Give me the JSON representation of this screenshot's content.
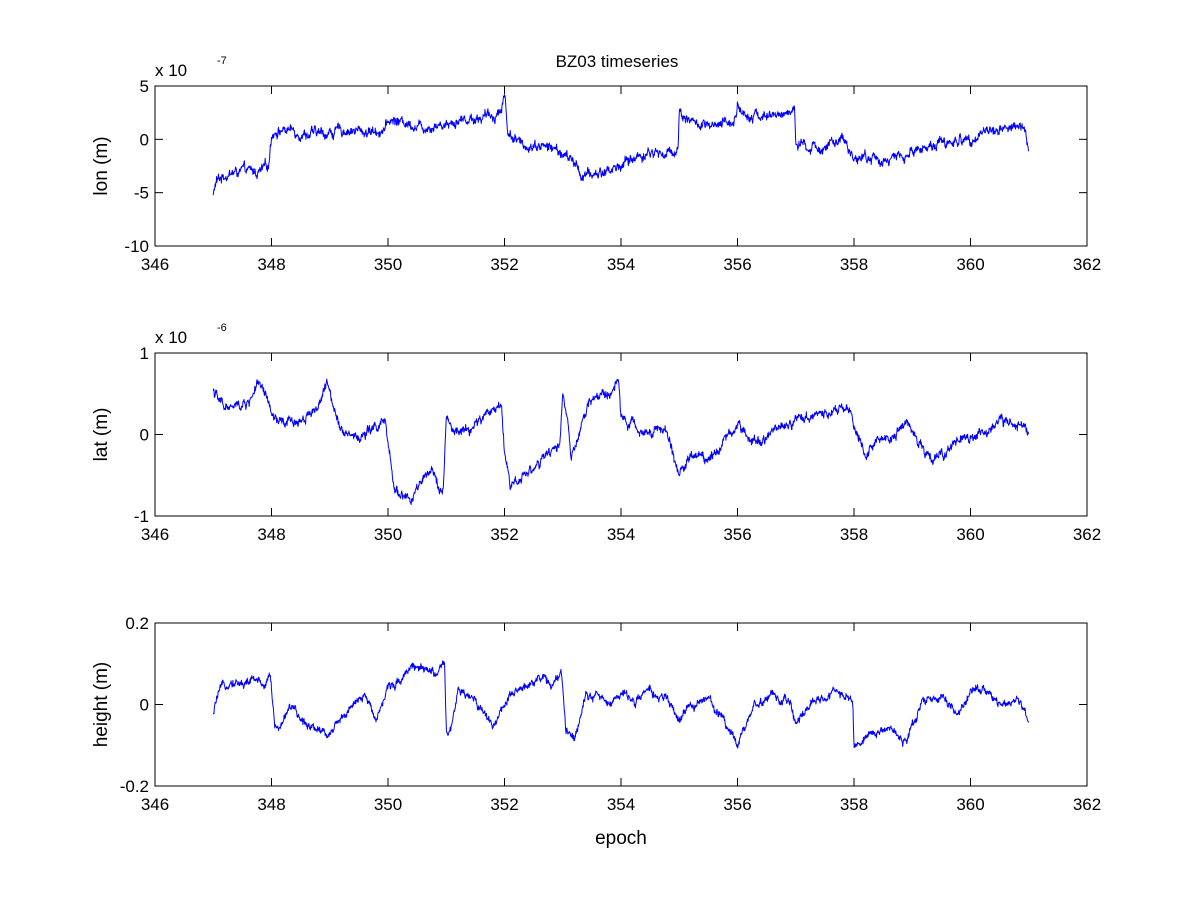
{
  "figure": {
    "title": "BZ03 timeseries",
    "line_color": "#0000ff",
    "background": "#ffffff"
  },
  "chart_data": [
    {
      "type": "line",
      "title": "BZ03 timeseries",
      "xlabel": "",
      "ylabel": "lon (m)",
      "exponent": {
        "base": "x 10",
        "power": "-7"
      },
      "xlim": [
        346,
        362
      ],
      "ylim": [
        -10,
        5
      ],
      "xticks": [
        "346",
        "348",
        "350",
        "352",
        "354",
        "356",
        "358",
        "360",
        "362"
      ],
      "yticks": [
        "-10",
        "-5",
        "0",
        "5"
      ],
      "xtick_values": [
        346,
        348,
        350,
        352,
        354,
        356,
        358,
        360,
        362
      ],
      "ytick_values": [
        -10,
        -5,
        0,
        5
      ],
      "grid": false,
      "noise": 0.55,
      "series": [
        {
          "color": "#0000ff",
          "x": [
            347.0,
            347.05,
            347.2,
            347.5,
            347.8,
            347.95,
            348.0,
            348.05,
            348.3,
            348.6,
            349.0,
            349.3,
            349.6,
            349.8,
            349.95,
            350.0,
            350.05,
            350.3,
            350.6,
            350.9,
            351.2,
            351.5,
            351.8,
            351.95,
            352.0,
            352.05,
            352.3,
            352.6,
            352.9,
            353.2,
            353.35,
            353.6,
            353.9,
            354.2,
            354.5,
            354.8,
            354.98,
            355.0,
            355.05,
            355.3,
            355.6,
            355.9,
            355.98,
            356.0,
            356.05,
            356.3,
            356.6,
            356.9,
            356.98,
            357.0,
            357.05,
            357.3,
            357.6,
            357.8,
            358.0,
            358.3,
            358.6,
            358.9,
            359.2,
            359.5,
            359.8,
            360.1,
            360.4,
            360.7,
            360.95,
            361.0
          ],
          "y": [
            -5.2,
            -4.0,
            -3.3,
            -3.0,
            -3.1,
            -2.5,
            0.5,
            0.8,
            0.9,
            0.5,
            0.6,
            0.9,
            0.7,
            0.8,
            1.0,
            1.5,
            1.8,
            1.6,
            1.2,
            1.4,
            1.8,
            2.0,
            2.2,
            2.8,
            4.6,
            0.8,
            -0.6,
            -0.5,
            -1.0,
            -2.2,
            -3.5,
            -3.2,
            -2.7,
            -1.8,
            -1.2,
            -1.4,
            -0.8,
            2.6,
            2.4,
            1.4,
            1.0,
            1.7,
            2.2,
            3.4,
            2.6,
            2.3,
            2.1,
            2.6,
            3.1,
            -0.4,
            -0.7,
            -0.9,
            -0.5,
            -0.2,
            -1.6,
            -1.8,
            -2.0,
            -1.5,
            -0.7,
            -0.3,
            -0.2,
            0.4,
            0.9,
            1.2,
            0.8,
            -1.2
          ]
        }
      ]
    },
    {
      "type": "line",
      "title": "",
      "xlabel": "",
      "ylabel": "lat (m)",
      "exponent": {
        "base": "x 10",
        "power": "-6"
      },
      "xlim": [
        346,
        362
      ],
      "ylim": [
        -1,
        1
      ],
      "xticks": [
        "346",
        "348",
        "350",
        "352",
        "354",
        "356",
        "358",
        "360",
        "362"
      ],
      "yticks": [
        "-1",
        "0",
        "1"
      ],
      "xtick_values": [
        346,
        348,
        350,
        352,
        354,
        356,
        358,
        360,
        362
      ],
      "ytick_values": [
        -1,
        0,
        1
      ],
      "grid": false,
      "noise": 0.07,
      "series": [
        {
          "color": "#0000ff",
          "x": [
            347.0,
            347.1,
            347.3,
            347.6,
            347.75,
            347.95,
            348.0,
            348.2,
            348.5,
            348.8,
            348.95,
            349.0,
            349.2,
            349.5,
            349.8,
            349.95,
            350.0,
            350.1,
            350.4,
            350.6,
            350.8,
            350.95,
            351.0,
            351.1,
            351.4,
            351.7,
            351.95,
            352.0,
            352.1,
            352.4,
            352.7,
            352.95,
            353.0,
            353.1,
            353.15,
            353.3,
            353.5,
            353.8,
            353.95,
            354.0,
            354.3,
            354.6,
            354.8,
            355.0,
            355.2,
            355.5,
            355.8,
            356.0,
            356.3,
            356.6,
            356.9,
            357.2,
            357.5,
            357.8,
            357.95,
            358.0,
            358.2,
            358.4,
            358.7,
            358.9,
            359.1,
            359.3,
            359.6,
            359.9,
            360.2,
            360.5,
            360.8,
            361.0
          ],
          "y": [
            0.55,
            0.4,
            0.32,
            0.38,
            0.62,
            0.4,
            0.22,
            0.12,
            0.18,
            0.35,
            0.6,
            0.52,
            0.08,
            -0.05,
            0.1,
            0.15,
            -0.15,
            -0.65,
            -0.82,
            -0.55,
            -0.5,
            -0.7,
            0.22,
            0.02,
            0.05,
            0.25,
            0.38,
            -0.2,
            -0.62,
            -0.45,
            -0.3,
            -0.1,
            0.5,
            0.1,
            -0.35,
            0.05,
            0.45,
            0.5,
            0.65,
            0.22,
            0.05,
            0.08,
            0.0,
            -0.5,
            -0.25,
            -0.28,
            -0.05,
            0.12,
            -0.08,
            0.05,
            0.15,
            0.22,
            0.28,
            0.35,
            0.3,
            0.05,
            -0.2,
            -0.05,
            0.0,
            0.15,
            -0.1,
            -0.3,
            -0.2,
            -0.08,
            0.02,
            0.15,
            0.12,
            0.05
          ]
        }
      ]
    },
    {
      "type": "line",
      "title": "",
      "xlabel": "epoch",
      "ylabel": "height (m)",
      "exponent": {
        "base": "",
        "power": ""
      },
      "xlim": [
        346,
        362
      ],
      "ylim": [
        -0.2,
        0.2
      ],
      "xticks": [
        "346",
        "348",
        "350",
        "352",
        "354",
        "356",
        "358",
        "360",
        "362"
      ],
      "yticks": [
        "-0.2",
        "0",
        "0.2"
      ],
      "xtick_values": [
        346,
        348,
        350,
        352,
        354,
        356,
        358,
        360,
        362
      ],
      "ytick_values": [
        -0.2,
        0,
        0.2
      ],
      "grid": false,
      "noise": 0.012,
      "series": [
        {
          "color": "#0000ff",
          "x": [
            347.0,
            347.05,
            347.15,
            347.3,
            347.5,
            347.7,
            347.9,
            347.97,
            348.05,
            348.15,
            348.3,
            348.5,
            348.7,
            348.95,
            349.0,
            349.1,
            349.3,
            349.6,
            349.8,
            350.0,
            350.2,
            350.4,
            350.6,
            350.9,
            350.97,
            351.0,
            351.05,
            351.2,
            351.5,
            351.8,
            352.0,
            352.3,
            352.6,
            352.8,
            352.98,
            353.05,
            353.2,
            353.4,
            353.6,
            353.8,
            354.0,
            354.2,
            354.5,
            354.8,
            355.0,
            355.2,
            355.5,
            355.8,
            356.0,
            356.1,
            356.3,
            356.6,
            356.9,
            357.0,
            357.3,
            357.6,
            357.9,
            357.98,
            358.0,
            358.1,
            358.3,
            358.6,
            358.9,
            359.0,
            359.2,
            359.5,
            359.8,
            360.0,
            360.2,
            360.5,
            360.8,
            361.0
          ],
          "y": [
            -0.03,
            0.01,
            0.04,
            0.06,
            0.05,
            0.06,
            0.05,
            0.09,
            -0.05,
            -0.06,
            0.0,
            -0.04,
            -0.05,
            -0.07,
            -0.08,
            -0.04,
            -0.02,
            0.02,
            -0.03,
            0.04,
            0.06,
            0.1,
            0.08,
            0.08,
            0.1,
            -0.07,
            -0.08,
            0.03,
            0.01,
            -0.05,
            0.0,
            0.04,
            0.07,
            0.05,
            0.07,
            -0.06,
            -0.08,
            0.03,
            0.02,
            0.0,
            0.03,
            0.01,
            0.03,
            0.01,
            -0.04,
            0.0,
            0.01,
            -0.04,
            -0.1,
            -0.06,
            0.0,
            0.02,
            0.0,
            -0.04,
            0.0,
            0.03,
            0.02,
            0.01,
            -0.1,
            -0.09,
            -0.07,
            -0.06,
            -0.09,
            -0.05,
            0.01,
            0.02,
            -0.03,
            0.03,
            0.04,
            0.0,
            0.02,
            -0.04
          ]
        }
      ]
    }
  ]
}
